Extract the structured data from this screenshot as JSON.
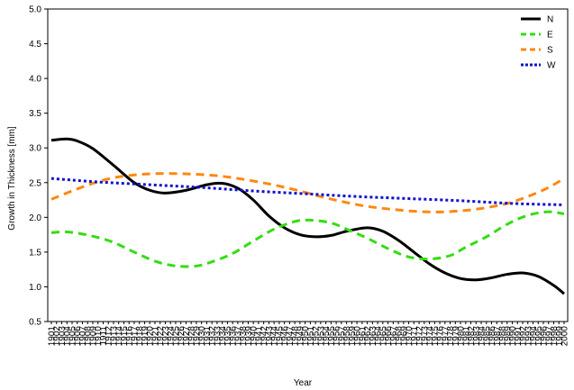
{
  "chart_data": {
    "type": "line",
    "title": "",
    "xlabel": "Year",
    "ylabel": "Growth in Thickness [mm]",
    "ylim": [
      0.5,
      5.0
    ],
    "yticks": [
      "0.5",
      "1.0",
      "1.5",
      "2.0",
      "2.5",
      "3.0",
      "3.5",
      "4.0",
      "4.5",
      "5.0"
    ],
    "xlim": [
      1901,
      2000
    ],
    "grid": false,
    "legend_position": "top-right",
    "series": [
      {
        "name": "N",
        "color": "#000000",
        "style": "solid",
        "x": [
          1901,
          1904,
          1906,
          1909,
          1913,
          1917,
          1920,
          1923,
          1927,
          1931,
          1934,
          1937,
          1940,
          1943,
          1946,
          1949,
          1952,
          1955,
          1958,
          1962,
          1965,
          1968,
          1971,
          1974,
          1977,
          1980,
          1983,
          1986,
          1989,
          1992,
          1995,
          1998,
          2000
        ],
        "y": [
          3.11,
          3.13,
          3.1,
          2.99,
          2.75,
          2.5,
          2.39,
          2.35,
          2.39,
          2.47,
          2.49,
          2.42,
          2.25,
          2.02,
          1.85,
          1.75,
          1.72,
          1.74,
          1.8,
          1.85,
          1.8,
          1.67,
          1.5,
          1.33,
          1.2,
          1.12,
          1.1,
          1.13,
          1.18,
          1.2,
          1.15,
          1.02,
          0.9
        ]
      },
      {
        "name": "E",
        "color": "#33dd11",
        "style": "dash",
        "x": [
          1901,
          1904,
          1907,
          1910,
          1913,
          1917,
          1921,
          1925,
          1929,
          1932,
          1936,
          1940,
          1944,
          1948,
          1951,
          1955,
          1958,
          1962,
          1966,
          1970,
          1974,
          1978,
          1981,
          1985,
          1989,
          1993,
          1997,
          2000
        ],
        "y": [
          1.78,
          1.79,
          1.76,
          1.71,
          1.64,
          1.5,
          1.37,
          1.3,
          1.3,
          1.36,
          1.48,
          1.66,
          1.83,
          1.94,
          1.96,
          1.92,
          1.83,
          1.7,
          1.55,
          1.43,
          1.4,
          1.45,
          1.57,
          1.72,
          1.9,
          2.03,
          2.08,
          2.05
        ]
      },
      {
        "name": "S",
        "color": "#ff8811",
        "style": "dash",
        "x": [
          1901,
          1905,
          1909,
          1913,
          1917,
          1921,
          1925,
          1929,
          1933,
          1937,
          1941,
          1945,
          1949,
          1953,
          1957,
          1961,
          1965,
          1969,
          1973,
          1977,
          1981,
          1985,
          1989,
          1993,
          1997,
          2000
        ],
        "y": [
          2.26,
          2.38,
          2.49,
          2.57,
          2.61,
          2.63,
          2.63,
          2.62,
          2.6,
          2.56,
          2.51,
          2.45,
          2.38,
          2.3,
          2.23,
          2.17,
          2.13,
          2.1,
          2.08,
          2.08,
          2.1,
          2.14,
          2.2,
          2.3,
          2.43,
          2.56
        ]
      },
      {
        "name": "W",
        "color": "#1111cc",
        "style": "dot",
        "x": [
          1901,
          1910,
          1920,
          1930,
          1940,
          1950,
          1960,
          1970,
          1980,
          1990,
          2000
        ],
        "y": [
          2.56,
          2.51,
          2.47,
          2.43,
          2.38,
          2.34,
          2.3,
          2.27,
          2.24,
          2.2,
          2.18
        ]
      }
    ]
  }
}
